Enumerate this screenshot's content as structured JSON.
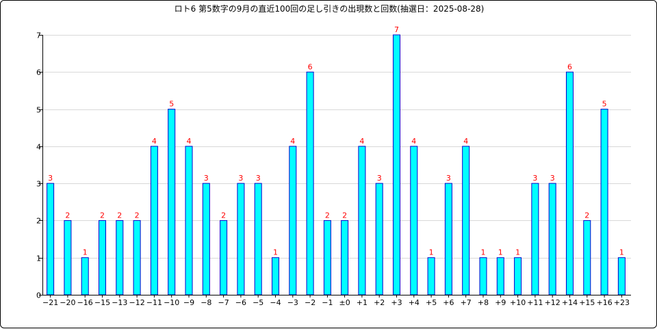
{
  "chart_data": {
    "type": "bar",
    "title": "ロト6 第5数字の9月の直近100回の足し引きの出現数と回数(抽選日：2025-08-28)",
    "xlabel": "",
    "ylabel": "",
    "categories": [
      "−21",
      "−20",
      "−16",
      "−15",
      "−13",
      "−12",
      "−11",
      "−10",
      "−9",
      "−8",
      "−7",
      "−6",
      "−5",
      "−4",
      "−3",
      "−2",
      "−1",
      "±0",
      "+1",
      "+2",
      "+3",
      "+4",
      "+5",
      "+6",
      "+7",
      "+8",
      "+9",
      "+10",
      "+11",
      "+12",
      "+14",
      "+15",
      "+16",
      "+23"
    ],
    "values": [
      3,
      2,
      1,
      2,
      2,
      2,
      4,
      5,
      4,
      3,
      2,
      3,
      3,
      1,
      4,
      6,
      2,
      2,
      4,
      3,
      7,
      4,
      1,
      3,
      4,
      1,
      1,
      1,
      3,
      3,
      6,
      2,
      5,
      1
    ],
    "ylim": [
      0,
      7
    ],
    "yticks": [
      0,
      1,
      2,
      3,
      4,
      5,
      6,
      7
    ],
    "grid": true,
    "legend": "none",
    "colors": {
      "bar_fill": "#00ffff",
      "bar_stroke": "#0000cc",
      "label": "#ff0000",
      "grid": "#d8d8d8",
      "axis": "#000000"
    }
  }
}
